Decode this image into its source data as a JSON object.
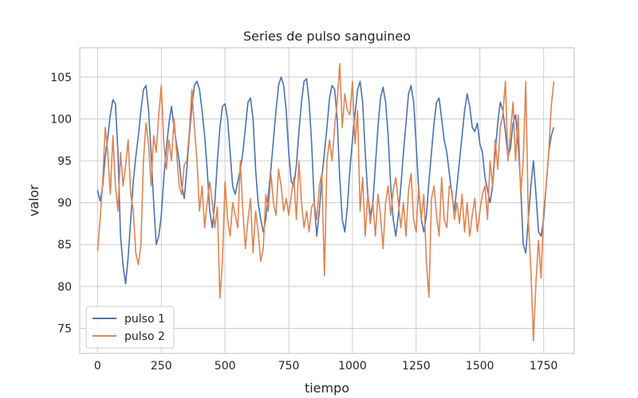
{
  "chart_data": {
    "type": "line",
    "title": "Series de pulso sanguineo",
    "xlabel": "tiempo",
    "ylabel": "valor",
    "xlim": [
      -70,
      1870
    ],
    "ylim": [
      72,
      108.5
    ],
    "xticks": [
      0,
      250,
      500,
      750,
      1000,
      1250,
      1500,
      1750
    ],
    "yticks": [
      75,
      80,
      85,
      90,
      95,
      100,
      105
    ],
    "grid": true,
    "legend": "bottom-left",
    "series": [
      {
        "name": "pulso 1",
        "color": "#4c72b0",
        "x": [
          0,
          10,
          20,
          30,
          40,
          50,
          60,
          70,
          80,
          90,
          100,
          110,
          120,
          130,
          140,
          150,
          160,
          170,
          180,
          190,
          200,
          210,
          220,
          230,
          240,
          250,
          260,
          270,
          280,
          290,
          300,
          310,
          320,
          330,
          340,
          350,
          360,
          370,
          380,
          390,
          400,
          410,
          420,
          430,
          440,
          450,
          460,
          470,
          480,
          490,
          500,
          510,
          520,
          530,
          540,
          550,
          560,
          570,
          580,
          590,
          600,
          610,
          620,
          630,
          640,
          650,
          660,
          670,
          680,
          690,
          700,
          710,
          720,
          730,
          740,
          750,
          760,
          770,
          780,
          790,
          800,
          810,
          820,
          830,
          840,
          850,
          860,
          870,
          880,
          890,
          900,
          910,
          920,
          930,
          940,
          950,
          960,
          970,
          980,
          990,
          1000,
          1010,
          1020,
          1030,
          1040,
          1050,
          1060,
          1070,
          1080,
          1090,
          1100,
          1110,
          1120,
          1130,
          1140,
          1150,
          1160,
          1170,
          1180,
          1190,
          1200,
          1210,
          1220,
          1230,
          1240,
          1250,
          1260,
          1270,
          1280,
          1290,
          1300,
          1310,
          1320,
          1330,
          1340,
          1350,
          1360,
          1370,
          1380,
          1390,
          1400,
          1410,
          1420,
          1430,
          1440,
          1450,
          1460,
          1470,
          1480,
          1490,
          1500,
          1510,
          1520,
          1530,
          1540,
          1550,
          1560,
          1570,
          1580,
          1590,
          1600,
          1610,
          1620,
          1630,
          1640,
          1650,
          1660,
          1670,
          1680,
          1690,
          1700,
          1710,
          1720,
          1730,
          1740,
          1750,
          1760,
          1770,
          1780,
          1790
        ],
        "values": [
          91.5,
          90.2,
          92.0,
          95.5,
          97.8,
          100.5,
          102.3,
          101.8,
          96.0,
          86.0,
          82.5,
          80.3,
          83.5,
          88.0,
          92.5,
          95.5,
          98.0,
          101.0,
          103.5,
          104.0,
          101.0,
          96.0,
          90.0,
          85.0,
          86.0,
          88.5,
          93.0,
          96.5,
          99.5,
          101.5,
          99.0,
          97.0,
          95.0,
          92.0,
          90.5,
          94.0,
          98.0,
          101.5,
          104.0,
          104.5,
          103.5,
          101.0,
          98.0,
          94.0,
          89.0,
          87.0,
          90.0,
          95.0,
          99.0,
          101.5,
          101.8,
          100.0,
          96.0,
          92.0,
          91.0,
          92.5,
          94.0,
          96.0,
          99.0,
          102.0,
          102.5,
          100.0,
          94.0,
          90.0,
          88.0,
          86.5,
          88.0,
          91.0,
          94.0,
          97.5,
          101.0,
          104.0,
          105.0,
          104.0,
          101.0,
          96.0,
          92.5,
          92.0,
          94.5,
          98.5,
          102.0,
          104.5,
          104.8,
          102.0,
          97.0,
          90.0,
          86.0,
          89.0,
          93.0,
          96.0,
          99.0,
          102.5,
          104.0,
          103.5,
          100.0,
          93.0,
          88.0,
          86.5,
          89.5,
          94.0,
          97.5,
          100.5,
          103.5,
          104.5,
          102.0,
          96.0,
          91.0,
          88.5,
          90.0,
          94.5,
          99.0,
          102.5,
          103.8,
          102.0,
          98.0,
          92.0,
          88.0,
          86.0,
          88.5,
          92.0,
          96.0,
          99.5,
          103.0,
          104.0,
          102.0,
          97.0,
          91.5,
          88.0,
          86.5,
          88.5,
          92.5,
          96.0,
          99.5,
          102.0,
          102.5,
          100.0,
          97.5,
          96.0,
          93.5,
          91.0,
          89.0,
          92.0,
          95.0,
          98.0,
          101.0,
          103.0,
          101.5,
          99.0,
          98.5,
          99.5,
          97.0,
          96.0,
          93.0,
          91.5,
          90.0,
          92.0,
          96.0,
          99.5,
          102.0,
          101.0,
          98.5,
          95.5,
          96.5,
          99.5,
          100.5,
          97.0,
          92.0,
          85.0,
          84.0,
          88.0,
          92.0,
          95.0,
          91.0,
          86.5,
          86.0,
          88.0,
          92.0,
          96.0,
          98.0,
          99.0
        ]
      },
      {
        "name": "pulso 2",
        "color": "#dd8452",
        "x": [
          0,
          10,
          20,
          30,
          40,
          50,
          60,
          70,
          80,
          90,
          100,
          110,
          120,
          130,
          140,
          150,
          160,
          170,
          180,
          190,
          200,
          210,
          220,
          230,
          240,
          250,
          260,
          270,
          280,
          290,
          300,
          310,
          320,
          330,
          340,
          350,
          360,
          370,
          380,
          390,
          400,
          410,
          420,
          430,
          440,
          450,
          460,
          470,
          480,
          490,
          500,
          510,
          520,
          530,
          540,
          550,
          560,
          570,
          580,
          590,
          600,
          610,
          620,
          630,
          640,
          650,
          660,
          670,
          680,
          690,
          700,
          710,
          720,
          730,
          740,
          750,
          760,
          770,
          780,
          790,
          800,
          810,
          820,
          830,
          840,
          850,
          860,
          870,
          880,
          890,
          900,
          910,
          920,
          930,
          940,
          950,
          960,
          970,
          980,
          990,
          1000,
          1010,
          1020,
          1030,
          1040,
          1050,
          1060,
          1070,
          1080,
          1090,
          1100,
          1110,
          1120,
          1130,
          1140,
          1150,
          1160,
          1170,
          1180,
          1190,
          1200,
          1210,
          1220,
          1230,
          1240,
          1250,
          1260,
          1270,
          1280,
          1290,
          1300,
          1310,
          1320,
          1330,
          1340,
          1350,
          1360,
          1370,
          1380,
          1390,
          1400,
          1410,
          1420,
          1430,
          1440,
          1450,
          1460,
          1470,
          1480,
          1490,
          1500,
          1510,
          1520,
          1530,
          1540,
          1550,
          1560,
          1570,
          1580,
          1590,
          1600,
          1610,
          1620,
          1630,
          1640,
          1650,
          1660,
          1670,
          1680,
          1690,
          1700,
          1710,
          1720,
          1730,
          1740,
          1750,
          1760,
          1770,
          1780,
          1790
        ],
        "values": [
          84.2,
          88.0,
          92.5,
          99.0,
          96.0,
          91.0,
          98.0,
          92.0,
          89.0,
          96.0,
          92.0,
          94.5,
          97.5,
          91.0,
          89.0,
          84.0,
          82.6,
          85.0,
          95.0,
          99.5,
          97.0,
          92.0,
          98.0,
          96.0,
          100.5,
          104.0,
          97.0,
          94.0,
          97.5,
          95.0,
          100.0,
          96.0,
          92.0,
          91.0,
          94.5,
          95.0,
          98.5,
          103.5,
          99.0,
          95.0,
          89.0,
          92.0,
          87.0,
          90.0,
          92.5,
          90.0,
          87.0,
          89.5,
          78.6,
          83.0,
          92.5,
          88.0,
          86.0,
          90.0,
          88.5,
          87.0,
          95.0,
          89.0,
          84.5,
          88.0,
          90.5,
          84.0,
          89.0,
          86.5,
          83.0,
          84.5,
          91.0,
          89.0,
          93.5,
          90.0,
          88.5,
          94.0,
          92.0,
          89.0,
          90.5,
          88.5,
          91.0,
          93.0,
          88.0,
          95.0,
          90.0,
          87.0,
          89.0,
          86.5,
          89.5,
          90.0,
          88.0,
          92.0,
          93.5,
          81.3,
          95.0,
          97.5,
          95.0,
          99.0,
          102.0,
          106.6,
          99.0,
          103.0,
          101.0,
          100.5,
          104.5,
          97.0,
          101.0,
          89.0,
          93.0,
          86.0,
          91.0,
          87.5,
          90.0,
          86.0,
          91.0,
          88.5,
          84.5,
          90.0,
          92.0,
          88.5,
          91.5,
          93.0,
          90.0,
          87.0,
          90.0,
          86.0,
          91.5,
          93.5,
          88.0,
          86.5,
          92.0,
          88.0,
          91.0,
          83.0,
          78.7,
          90.5,
          92.0,
          88.5,
          86.0,
          93.0,
          88.0,
          87.0,
          92.0,
          91.5,
          88.0,
          90.0,
          87.5,
          91.0,
          86.5,
          90.0,
          86.0,
          88.5,
          90.5,
          86.5,
          89.0,
          91.0,
          92.0,
          88.0,
          95.0,
          92.0,
          97.5,
          94.0,
          99.0,
          100.5,
          104.5,
          95.0,
          98.5,
          102.0,
          95.0,
          100.5,
          91.0,
          95.0,
          104.5,
          88.0,
          82.0,
          73.5,
          80.5,
          85.5,
          81.0,
          89.0,
          92.0,
          96.0,
          101.5,
          104.5
        ]
      }
    ]
  }
}
